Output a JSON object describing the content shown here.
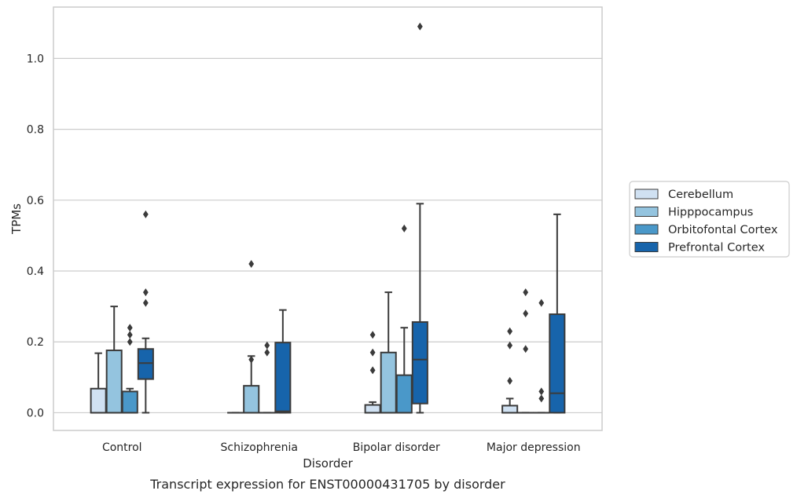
{
  "chart_data": {
    "type": "box",
    "title": "",
    "caption": "Transcript expression for ENST00000431705 by disorder",
    "xlabel": "Disorder",
    "ylabel": "TPMs",
    "ylim": [
      -0.05,
      1.145
    ],
    "yticks": [
      0.0,
      0.2,
      0.4,
      0.6,
      0.8,
      1.0
    ],
    "ytick_labels": [
      "0.0",
      "0.2",
      "0.4",
      "0.6",
      "0.8",
      "1.0"
    ],
    "grid": true,
    "legend_position": "right",
    "categories": [
      "Control",
      "Schizophrenia",
      "Bipolar disorder",
      "Major depression"
    ],
    "series": [
      {
        "name": "Cerebellum",
        "color": "#d0e1f2",
        "boxes": [
          {
            "min": 0.0,
            "q1": 0.0,
            "median": 0.0,
            "q3": 0.068,
            "max": 0.168,
            "outliers": []
          },
          {
            "min": 0.0,
            "q1": 0.0,
            "median": 0.0,
            "q3": 0.0,
            "max": 0.0,
            "outliers": []
          },
          {
            "min": 0.0,
            "q1": 0.0,
            "median": 0.0,
            "q3": 0.022,
            "max": 0.03,
            "outliers": [
              0.12,
              0.17,
              0.22
            ]
          },
          {
            "min": 0.0,
            "q1": 0.0,
            "median": 0.0,
            "q3": 0.02,
            "max": 0.04,
            "outliers": [
              0.09,
              0.19,
              0.23
            ]
          }
        ]
      },
      {
        "name": "Hipppocampus",
        "color": "#94c4df",
        "boxes": [
          {
            "min": 0.0,
            "q1": 0.0,
            "median": 0.0,
            "q3": 0.176,
            "max": 0.3,
            "outliers": []
          },
          {
            "min": 0.0,
            "q1": 0.0,
            "median": 0.0,
            "q3": 0.076,
            "max": 0.16,
            "outliers": [
              0.15,
              0.42
            ]
          },
          {
            "min": 0.0,
            "q1": 0.0,
            "median": 0.0,
            "q3": 0.17,
            "max": 0.34,
            "outliers": []
          },
          {
            "min": 0.0,
            "q1": 0.0,
            "median": 0.0,
            "q3": 0.0,
            "max": 0.0,
            "outliers": [
              0.18,
              0.28,
              0.34
            ]
          }
        ]
      },
      {
        "name": "Orbitofontal Cortex",
        "color": "#4a98c9",
        "boxes": [
          {
            "min": 0.0,
            "q1": 0.0,
            "median": 0.0,
            "q3": 0.06,
            "max": 0.068,
            "outliers": [
              0.2,
              0.22,
              0.24
            ]
          },
          {
            "min": 0.0,
            "q1": 0.0,
            "median": 0.0,
            "q3": 0.0,
            "max": 0.0,
            "outliers": [
              0.17,
              0.19
            ]
          },
          {
            "min": 0.0,
            "q1": 0.0,
            "median": 0.0,
            "q3": 0.106,
            "max": 0.24,
            "outliers": [
              0.52
            ]
          },
          {
            "min": 0.0,
            "q1": 0.0,
            "median": 0.0,
            "q3": 0.0,
            "max": 0.0,
            "outliers": [
              0.04,
              0.06,
              0.31
            ]
          }
        ]
      },
      {
        "name": "Prefrontal Cortex",
        "color": "#1764ab",
        "boxes": [
          {
            "min": 0.0,
            "q1": 0.095,
            "median": 0.14,
            "q3": 0.18,
            "max": 0.21,
            "outliers": [
              0.31,
              0.34,
              0.56
            ]
          },
          {
            "min": 0.0,
            "q1": 0.0,
            "median": 0.004,
            "q3": 0.198,
            "max": 0.29,
            "outliers": []
          },
          {
            "min": 0.0,
            "q1": 0.026,
            "median": 0.15,
            "q3": 0.256,
            "max": 0.59,
            "outliers": [
              1.09
            ]
          },
          {
            "min": 0.0,
            "q1": 0.0,
            "median": 0.055,
            "q3": 0.278,
            "max": 0.56,
            "outliers": []
          }
        ]
      }
    ]
  }
}
